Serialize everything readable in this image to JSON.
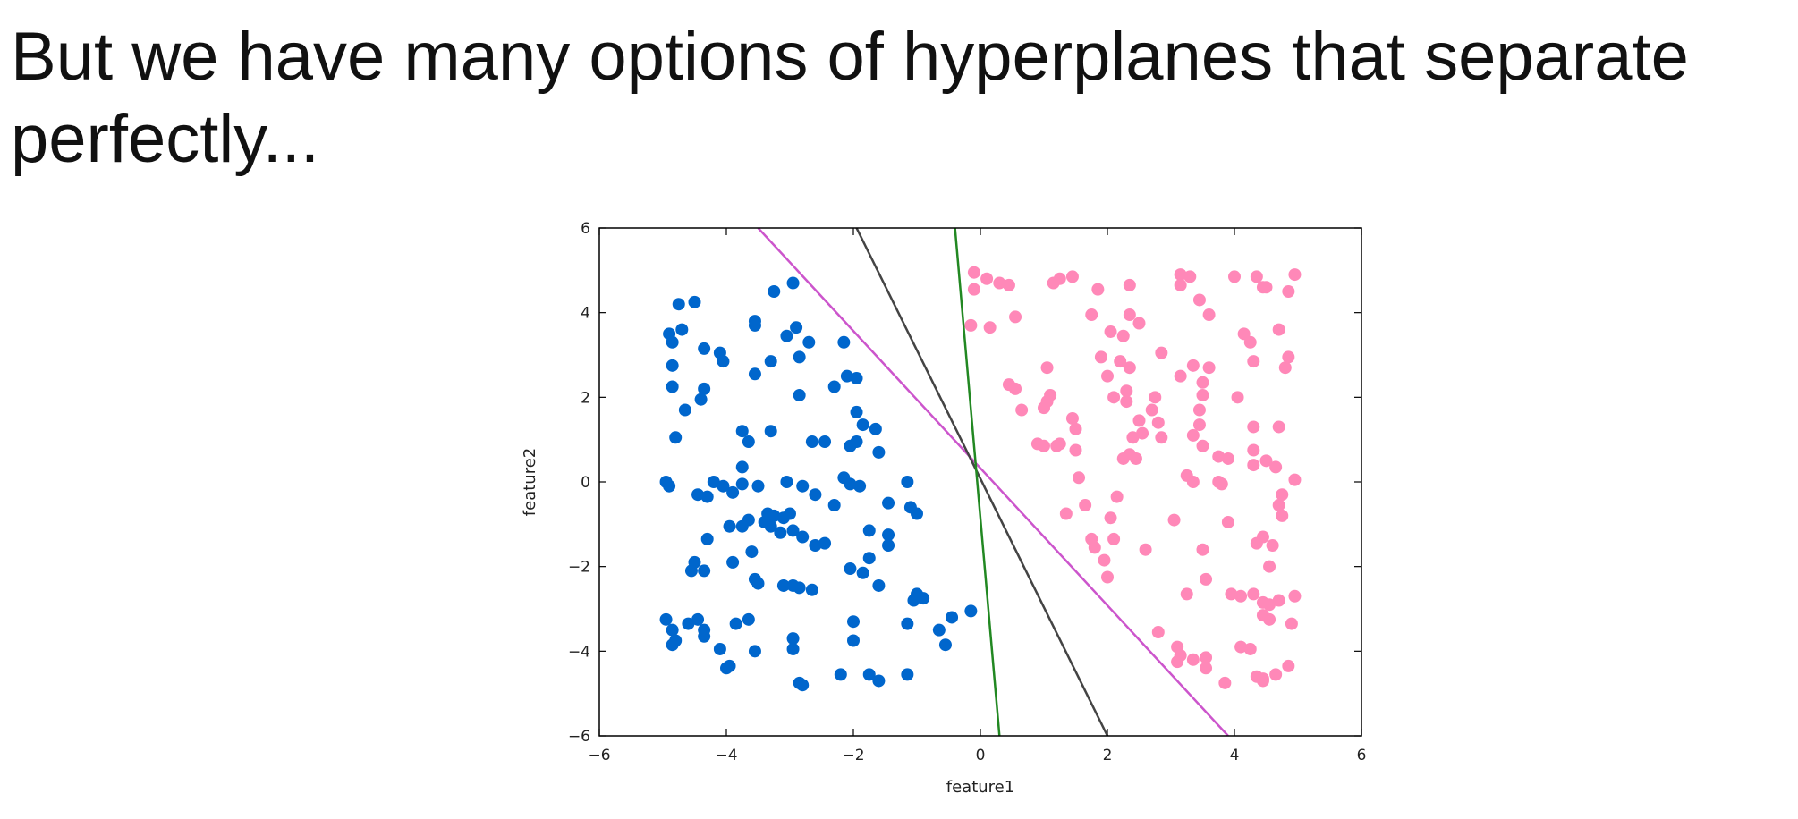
{
  "slide": {
    "title": "But we have many options of hyperplanes that separate perfectly..."
  },
  "chart_data": {
    "type": "scatter",
    "xlabel": "feature1",
    "ylabel": "feature2",
    "xlim": [
      -6,
      6
    ],
    "ylim": [
      -6,
      6
    ],
    "x_ticks": [
      -6,
      -4,
      -2,
      0,
      2,
      4,
      6
    ],
    "y_ticks": [
      -6,
      -4,
      -2,
      0,
      2,
      4,
      6
    ],
    "grid": false,
    "legend": "none",
    "series": [
      {
        "color": "#0066cc",
        "points": [
          [
            -4.9,
            3.5
          ],
          [
            -4.85,
            3.3
          ],
          [
            -4.7,
            3.6
          ],
          [
            -4.75,
            4.2
          ],
          [
            -4.5,
            4.25
          ],
          [
            -4.35,
            3.15
          ],
          [
            -4.1,
            3.05
          ],
          [
            -4.05,
            2.85
          ],
          [
            -4.85,
            2.75
          ],
          [
            -4.85,
            2.25
          ],
          [
            -4.35,
            2.2
          ],
          [
            -4.4,
            1.95
          ],
          [
            -4.65,
            1.7
          ],
          [
            -4.8,
            1.05
          ],
          [
            -3.55,
            3.8
          ],
          [
            -3.55,
            3.7
          ],
          [
            -3.25,
            4.5
          ],
          [
            -2.95,
            4.7
          ],
          [
            -3.05,
            3.45
          ],
          [
            -2.9,
            3.65
          ],
          [
            -2.7,
            3.3
          ],
          [
            -3.3,
            2.85
          ],
          [
            -2.85,
            2.95
          ],
          [
            -3.55,
            2.55
          ],
          [
            -2.15,
            3.3
          ],
          [
            -2.1,
            2.5
          ],
          [
            -1.95,
            2.45
          ],
          [
            -2.3,
            2.25
          ],
          [
            -2.85,
            2.05
          ],
          [
            -1.95,
            1.65
          ],
          [
            -1.85,
            1.35
          ],
          [
            -1.65,
            1.25
          ],
          [
            -1.95,
            0.95
          ],
          [
            -2.05,
            0.85
          ],
          [
            -1.6,
            0.7
          ],
          [
            -2.65,
            0.95
          ],
          [
            -2.45,
            0.95
          ],
          [
            -3.75,
            1.2
          ],
          [
            -3.65,
            0.95
          ],
          [
            -3.3,
            1.2
          ],
          [
            -4.95,
            -0.0
          ],
          [
            -4.9,
            -0.1
          ],
          [
            -4.2,
            -0.0
          ],
          [
            -4.45,
            -0.3
          ],
          [
            -4.3,
            -0.35
          ],
          [
            -4.05,
            -0.1
          ],
          [
            -3.75,
            0.35
          ],
          [
            -3.75,
            -0.05
          ],
          [
            -3.9,
            -0.25
          ],
          [
            -3.5,
            -0.1
          ],
          [
            -3.35,
            -0.75
          ],
          [
            -3.25,
            -0.8
          ],
          [
            -3.1,
            -0.85
          ],
          [
            -3.0,
            -0.75
          ],
          [
            -3.05,
            -0.0
          ],
          [
            -2.6,
            -0.3
          ],
          [
            -2.8,
            -0.1
          ],
          [
            -2.15,
            0.1
          ],
          [
            -2.05,
            -0.05
          ],
          [
            -1.9,
            -0.1
          ],
          [
            -2.3,
            -0.55
          ],
          [
            -1.45,
            -0.5
          ],
          [
            -1.15,
            -0.0
          ],
          [
            -1.1,
            -0.6
          ],
          [
            -1.0,
            -0.75
          ],
          [
            -3.65,
            -0.9
          ],
          [
            -3.4,
            -0.95
          ],
          [
            -3.3,
            -1.05
          ],
          [
            -3.15,
            -1.2
          ],
          [
            -2.95,
            -1.15
          ],
          [
            -2.8,
            -1.3
          ],
          [
            -2.6,
            -1.5
          ],
          [
            -2.45,
            -1.45
          ],
          [
            -3.95,
            -1.05
          ],
          [
            -3.75,
            -1.05
          ],
          [
            -4.3,
            -1.35
          ],
          [
            -1.75,
            -1.15
          ],
          [
            -1.45,
            -1.25
          ],
          [
            -1.45,
            -1.5
          ],
          [
            -1.75,
            -1.8
          ],
          [
            -4.55,
            -2.1
          ],
          [
            -4.5,
            -1.9
          ],
          [
            -4.35,
            -2.1
          ],
          [
            -3.9,
            -1.9
          ],
          [
            -3.6,
            -1.65
          ],
          [
            -3.55,
            -2.3
          ],
          [
            -3.5,
            -2.4
          ],
          [
            -3.1,
            -2.45
          ],
          [
            -2.95,
            -2.45
          ],
          [
            -2.85,
            -2.5
          ],
          [
            -2.65,
            -2.55
          ],
          [
            -2.05,
            -2.05
          ],
          [
            -1.85,
            -2.15
          ],
          [
            -1.6,
            -2.45
          ],
          [
            -1.0,
            -2.65
          ],
          [
            -0.9,
            -2.75
          ],
          [
            -1.05,
            -2.8
          ],
          [
            -0.15,
            -3.05
          ],
          [
            -0.45,
            -3.2
          ],
          [
            -0.65,
            -3.5
          ],
          [
            -0.55,
            -3.85
          ],
          [
            -1.15,
            -3.35
          ],
          [
            -2.0,
            -3.3
          ],
          [
            -2.0,
            -3.75
          ],
          [
            -4.95,
            -3.25
          ],
          [
            -4.85,
            -3.5
          ],
          [
            -4.8,
            -3.75
          ],
          [
            -4.85,
            -3.85
          ],
          [
            -4.6,
            -3.35
          ],
          [
            -4.45,
            -3.25
          ],
          [
            -4.35,
            -3.5
          ],
          [
            -4.35,
            -3.65
          ],
          [
            -4.1,
            -3.95
          ],
          [
            -3.85,
            -3.35
          ],
          [
            -3.65,
            -3.25
          ],
          [
            -3.55,
            -4.0
          ],
          [
            -3.95,
            -4.35
          ],
          [
            -2.95,
            -3.7
          ],
          [
            -2.95,
            -3.95
          ],
          [
            -4.0,
            -4.4
          ],
          [
            -2.85,
            -4.75
          ],
          [
            -2.2,
            -4.55
          ],
          [
            -1.75,
            -4.55
          ],
          [
            -1.6,
            -4.7
          ],
          [
            -1.15,
            -4.55
          ],
          [
            -2.8,
            -4.8
          ]
        ]
      },
      {
        "color": "#ff88b8",
        "points": [
          [
            -0.1,
            4.95
          ],
          [
            0.1,
            4.8
          ],
          [
            0.3,
            4.7
          ],
          [
            0.45,
            4.65
          ],
          [
            -0.1,
            4.55
          ],
          [
            0.55,
            3.9
          ],
          [
            -0.15,
            3.7
          ],
          [
            0.15,
            3.65
          ],
          [
            1.15,
            4.7
          ],
          [
            1.25,
            4.8
          ],
          [
            1.45,
            4.85
          ],
          [
            1.85,
            4.55
          ],
          [
            2.35,
            4.65
          ],
          [
            1.75,
            3.95
          ],
          [
            2.35,
            3.95
          ],
          [
            2.5,
            3.75
          ],
          [
            2.05,
            3.55
          ],
          [
            2.25,
            3.45
          ],
          [
            3.15,
            4.9
          ],
          [
            3.3,
            4.85
          ],
          [
            3.45,
            4.3
          ],
          [
            3.15,
            4.65
          ],
          [
            3.6,
            3.95
          ],
          [
            4.0,
            4.85
          ],
          [
            4.35,
            4.85
          ],
          [
            4.45,
            4.6
          ],
          [
            4.5,
            4.6
          ],
          [
            4.85,
            4.5
          ],
          [
            4.95,
            4.9
          ],
          [
            4.15,
            3.5
          ],
          [
            4.25,
            3.3
          ],
          [
            4.7,
            3.6
          ],
          [
            4.85,
            2.95
          ],
          [
            4.8,
            2.7
          ],
          [
            4.3,
            2.85
          ],
          [
            2.85,
            3.05
          ],
          [
            3.35,
            2.75
          ],
          [
            3.6,
            2.7
          ],
          [
            3.5,
            2.35
          ],
          [
            3.15,
            2.5
          ],
          [
            0.45,
            2.3
          ],
          [
            0.55,
            2.2
          ],
          [
            0.65,
            1.7
          ],
          [
            1.05,
            2.7
          ],
          [
            1.1,
            2.05
          ],
          [
            1.05,
            1.9
          ],
          [
            1.0,
            1.75
          ],
          [
            1.45,
            1.5
          ],
          [
            1.5,
            1.25
          ],
          [
            1.9,
            2.95
          ],
          [
            2.0,
            2.5
          ],
          [
            2.1,
            2.0
          ],
          [
            2.2,
            2.85
          ],
          [
            2.35,
            2.7
          ],
          [
            2.3,
            2.15
          ],
          [
            2.3,
            1.9
          ],
          [
            2.5,
            1.45
          ],
          [
            2.4,
            1.05
          ],
          [
            2.55,
            1.15
          ],
          [
            2.75,
            2.0
          ],
          [
            2.7,
            1.7
          ],
          [
            2.8,
            1.4
          ],
          [
            2.85,
            1.05
          ],
          [
            1.0,
            0.85
          ],
          [
            0.9,
            0.9
          ],
          [
            1.2,
            0.85
          ],
          [
            1.25,
            0.9
          ],
          [
            1.5,
            0.75
          ],
          [
            2.25,
            0.55
          ],
          [
            2.35,
            0.65
          ],
          [
            2.45,
            0.55
          ],
          [
            3.5,
            2.05
          ],
          [
            3.45,
            1.7
          ],
          [
            3.45,
            1.35
          ],
          [
            3.35,
            1.1
          ],
          [
            3.5,
            0.85
          ],
          [
            3.75,
            0.6
          ],
          [
            3.9,
            0.55
          ],
          [
            4.05,
            2.0
          ],
          [
            4.3,
            1.3
          ],
          [
            4.7,
            1.3
          ],
          [
            4.3,
            0.75
          ],
          [
            4.5,
            0.5
          ],
          [
            4.3,
            0.4
          ],
          [
            4.65,
            0.35
          ],
          [
            4.95,
            0.05
          ],
          [
            4.75,
            -0.3
          ],
          [
            4.7,
            -0.55
          ],
          [
            4.75,
            -0.8
          ],
          [
            4.45,
            -1.3
          ],
          [
            4.6,
            -1.5
          ],
          [
            4.35,
            -1.45
          ],
          [
            4.55,
            -2.0
          ],
          [
            4.3,
            -2.65
          ],
          [
            4.45,
            -2.85
          ],
          [
            4.55,
            -2.9
          ],
          [
            4.7,
            -2.8
          ],
          [
            4.95,
            -2.7
          ],
          [
            4.9,
            -3.35
          ],
          [
            4.55,
            -3.25
          ],
          [
            4.45,
            -3.15
          ],
          [
            1.55,
            0.1
          ],
          [
            1.35,
            -0.75
          ],
          [
            1.65,
            -0.55
          ],
          [
            2.15,
            -0.35
          ],
          [
            2.05,
            -0.85
          ],
          [
            2.1,
            -1.35
          ],
          [
            1.75,
            -1.35
          ],
          [
            1.8,
            -1.55
          ],
          [
            1.95,
            -1.85
          ],
          [
            2.0,
            -2.25
          ],
          [
            2.6,
            -1.6
          ],
          [
            3.05,
            -0.9
          ],
          [
            3.25,
            0.15
          ],
          [
            3.35,
            -0.0
          ],
          [
            3.75,
            0.0
          ],
          [
            3.8,
            -0.05
          ],
          [
            3.9,
            -0.95
          ],
          [
            3.5,
            -1.6
          ],
          [
            3.55,
            -2.3
          ],
          [
            3.25,
            -2.65
          ],
          [
            3.95,
            -2.65
          ],
          [
            4.1,
            -2.7
          ],
          [
            2.8,
            -3.55
          ],
          [
            3.1,
            -3.9
          ],
          [
            3.15,
            -4.1
          ],
          [
            3.35,
            -4.2
          ],
          [
            3.55,
            -4.15
          ],
          [
            3.55,
            -4.4
          ],
          [
            3.1,
            -4.25
          ],
          [
            4.1,
            -3.9
          ],
          [
            4.25,
            -3.95
          ],
          [
            4.35,
            -4.6
          ],
          [
            4.45,
            -4.65
          ],
          [
            4.65,
            -4.55
          ],
          [
            4.85,
            -4.35
          ],
          [
            3.85,
            -4.75
          ],
          [
            4.45,
            -4.7
          ]
        ]
      }
    ],
    "lines": [
      {
        "color": "#cc55cc",
        "x": [
          -3.5,
          3.9
        ],
        "y": [
          6,
          -6
        ]
      },
      {
        "color": "#444444",
        "x": [
          -1.95,
          2.0
        ],
        "y": [
          6,
          -6
        ]
      },
      {
        "color": "#228822",
        "x": [
          -0.4,
          0.3
        ],
        "y": [
          6,
          -6
        ]
      }
    ]
  }
}
